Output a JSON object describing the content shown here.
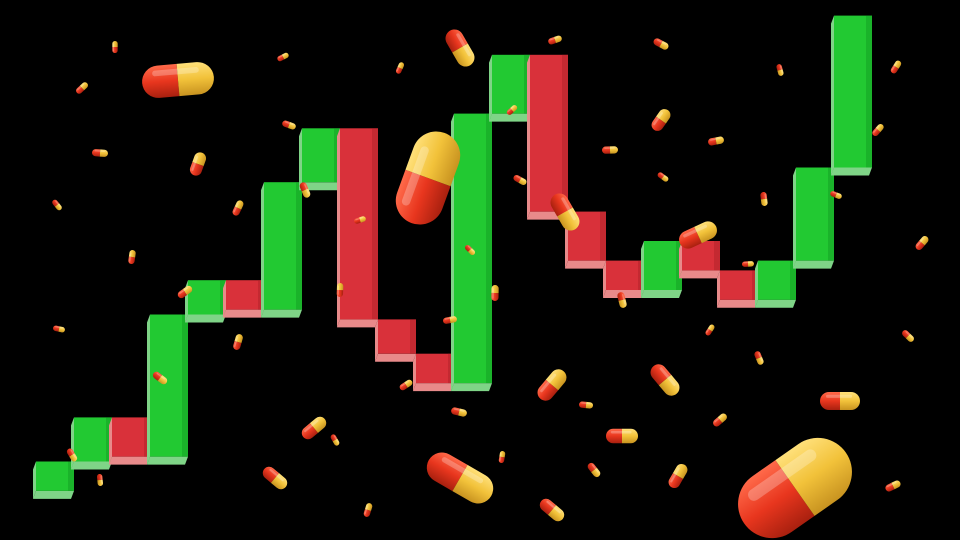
{
  "scene": {
    "description_hidden": "",
    "background_color": "#000000"
  },
  "palette": {
    "up_color": "#22c932",
    "up_side": "#7fd487",
    "up_dark": "#14a024",
    "down_color": "#d9313a",
    "down_side": "#e88a8a",
    "down_dark": "#b2222a",
    "capsule_red": "#e8361e",
    "capsule_yellow": "#f2c23a"
  },
  "candles": [
    {
      "dir": "up",
      "open": 0.9,
      "close": 1.5
    },
    {
      "dir": "up",
      "open": 1.5,
      "close": 2.4
    },
    {
      "dir": "down",
      "open": 2.4,
      "close": 1.6
    },
    {
      "dir": "up",
      "open": 1.6,
      "close": 4.5
    },
    {
      "dir": "up",
      "open": 4.5,
      "close": 5.2
    },
    {
      "dir": "down",
      "open": 5.2,
      "close": 4.6
    },
    {
      "dir": "up",
      "open": 4.6,
      "close": 7.2
    },
    {
      "dir": "up",
      "open": 7.2,
      "close": 8.3
    },
    {
      "dir": "down",
      "open": 8.3,
      "close": 4.4
    },
    {
      "dir": "down",
      "open": 4.4,
      "close": 3.7
    },
    {
      "dir": "down",
      "open": 3.7,
      "close": 3.1
    },
    {
      "dir": "up",
      "open": 3.1,
      "close": 8.6
    },
    {
      "dir": "up",
      "open": 8.6,
      "close": 9.8
    },
    {
      "dir": "down",
      "open": 9.8,
      "close": 6.6
    },
    {
      "dir": "down",
      "open": 6.6,
      "close": 5.6
    },
    {
      "dir": "down",
      "open": 5.6,
      "close": 5.0
    },
    {
      "dir": "up",
      "open": 5.0,
      "close": 6.0
    },
    {
      "dir": "down",
      "open": 6.0,
      "close": 5.4
    },
    {
      "dir": "down",
      "open": 5.4,
      "close": 4.8
    },
    {
      "dir": "up",
      "open": 4.8,
      "close": 5.6
    },
    {
      "dir": "up",
      "open": 5.6,
      "close": 7.5
    },
    {
      "dir": "up",
      "open": 7.5,
      "close": 10.6
    }
  ],
  "capsules": [
    {
      "size": "large",
      "count": 3
    },
    {
      "size": "medium",
      "count": 14
    },
    {
      "size": "small",
      "count": 48
    }
  ]
}
